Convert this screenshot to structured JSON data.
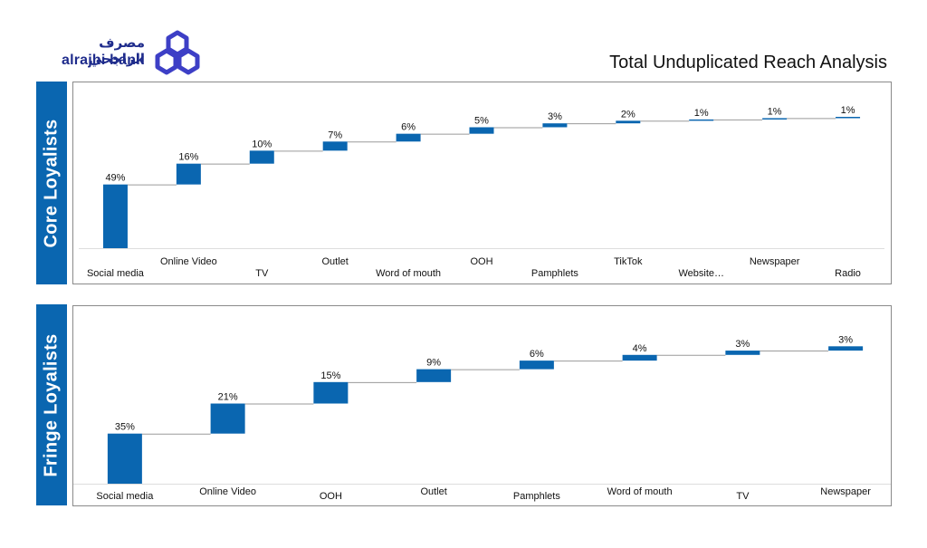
{
  "brand": {
    "arabic_name": "مصرف الراجحي",
    "latin_name": "alrajhi bank",
    "primary_color": "#1f2c8c",
    "accent_color": "#1f2c8c"
  },
  "title": "Total Unduplicated Reach Analysis",
  "colors": {
    "bar": "#0a66b0",
    "tab": "#0a66b0",
    "connector": "#9a9a9a"
  },
  "chart_data": [
    {
      "type": "bar",
      "subtype": "waterfall",
      "name": "Core Loyalists",
      "categories": [
        "Social media",
        "Online Video",
        "TV",
        "Outlet",
        "Word of mouth",
        "OOH",
        "Pamphlets",
        "TikTok",
        "Website…",
        "Newspaper",
        "Radio"
      ],
      "values": [
        49,
        16,
        10,
        7,
        6,
        5,
        3,
        2,
        1,
        1,
        1
      ],
      "data_labels": [
        "49%",
        "16%",
        "10%",
        "7%",
        "6%",
        "5%",
        "3%",
        "2%",
        "1%",
        "1%",
        "1%"
      ],
      "ylim": [
        0,
        101
      ],
      "unit": "%"
    },
    {
      "type": "bar",
      "subtype": "waterfall",
      "name": "Fringe Loyalists",
      "categories": [
        "Social media",
        "Online Video",
        "OOH",
        "Outlet",
        "Pamphlets",
        "Word of mouth",
        "TV",
        "Newspaper"
      ],
      "values": [
        35,
        21,
        15,
        9,
        6,
        4,
        3,
        3
      ],
      "data_labels": [
        "35%",
        "21%",
        "15%",
        "9%",
        "6%",
        "4%",
        "3%",
        "3%"
      ],
      "ylim": [
        0,
        100
      ],
      "unit": "%"
    }
  ]
}
